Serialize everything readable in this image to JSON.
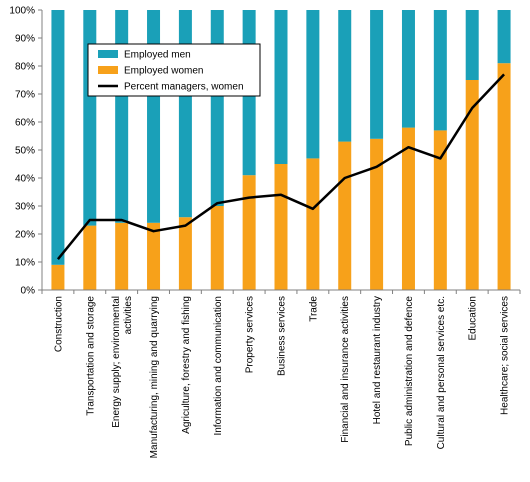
{
  "chart_data": {
    "type": "bar",
    "stacked": true,
    "percent_stacked": true,
    "categories": [
      "Construction",
      "Transportation and storage",
      "Energy supply; environmental activities",
      "Manufacturing, mining and quarrying",
      "Agriculture, forestry and fishing",
      "Information and communication",
      "Property services",
      "Business services",
      "Trade",
      "Financial and insurance activities",
      "Hotel and restaurant industry",
      "Public administration and defence",
      "Cultural and personal services etc.",
      "Education",
      "Healthcare; social services"
    ],
    "series": [
      {
        "name": "Employed men",
        "type": "bar",
        "color": "#1aa0b8",
        "values": [
          91,
          77,
          76,
          76,
          74,
          70,
          59,
          55,
          53,
          47,
          46,
          42,
          43,
          25,
          19
        ]
      },
      {
        "name": "Employed women",
        "type": "bar",
        "color": "#f7a11a",
        "values": [
          9,
          23,
          24,
          24,
          26,
          30,
          41,
          45,
          47,
          53,
          54,
          58,
          57,
          75,
          81
        ]
      },
      {
        "name": "Percent managers, women",
        "type": "line",
        "color": "#000000",
        "values": [
          11,
          25,
          25,
          21,
          23,
          31,
          33,
          34,
          29,
          40,
          44,
          51,
          47,
          65,
          77
        ]
      }
    ],
    "y_ticks": [
      "0%",
      "10%",
      "20%",
      "30%",
      "40%",
      "50%",
      "60%",
      "70%",
      "80%",
      "90%",
      "100%"
    ],
    "ylim": [
      0,
      100
    ],
    "grid": false,
    "legend_position": "top-left (inside plot)"
  }
}
